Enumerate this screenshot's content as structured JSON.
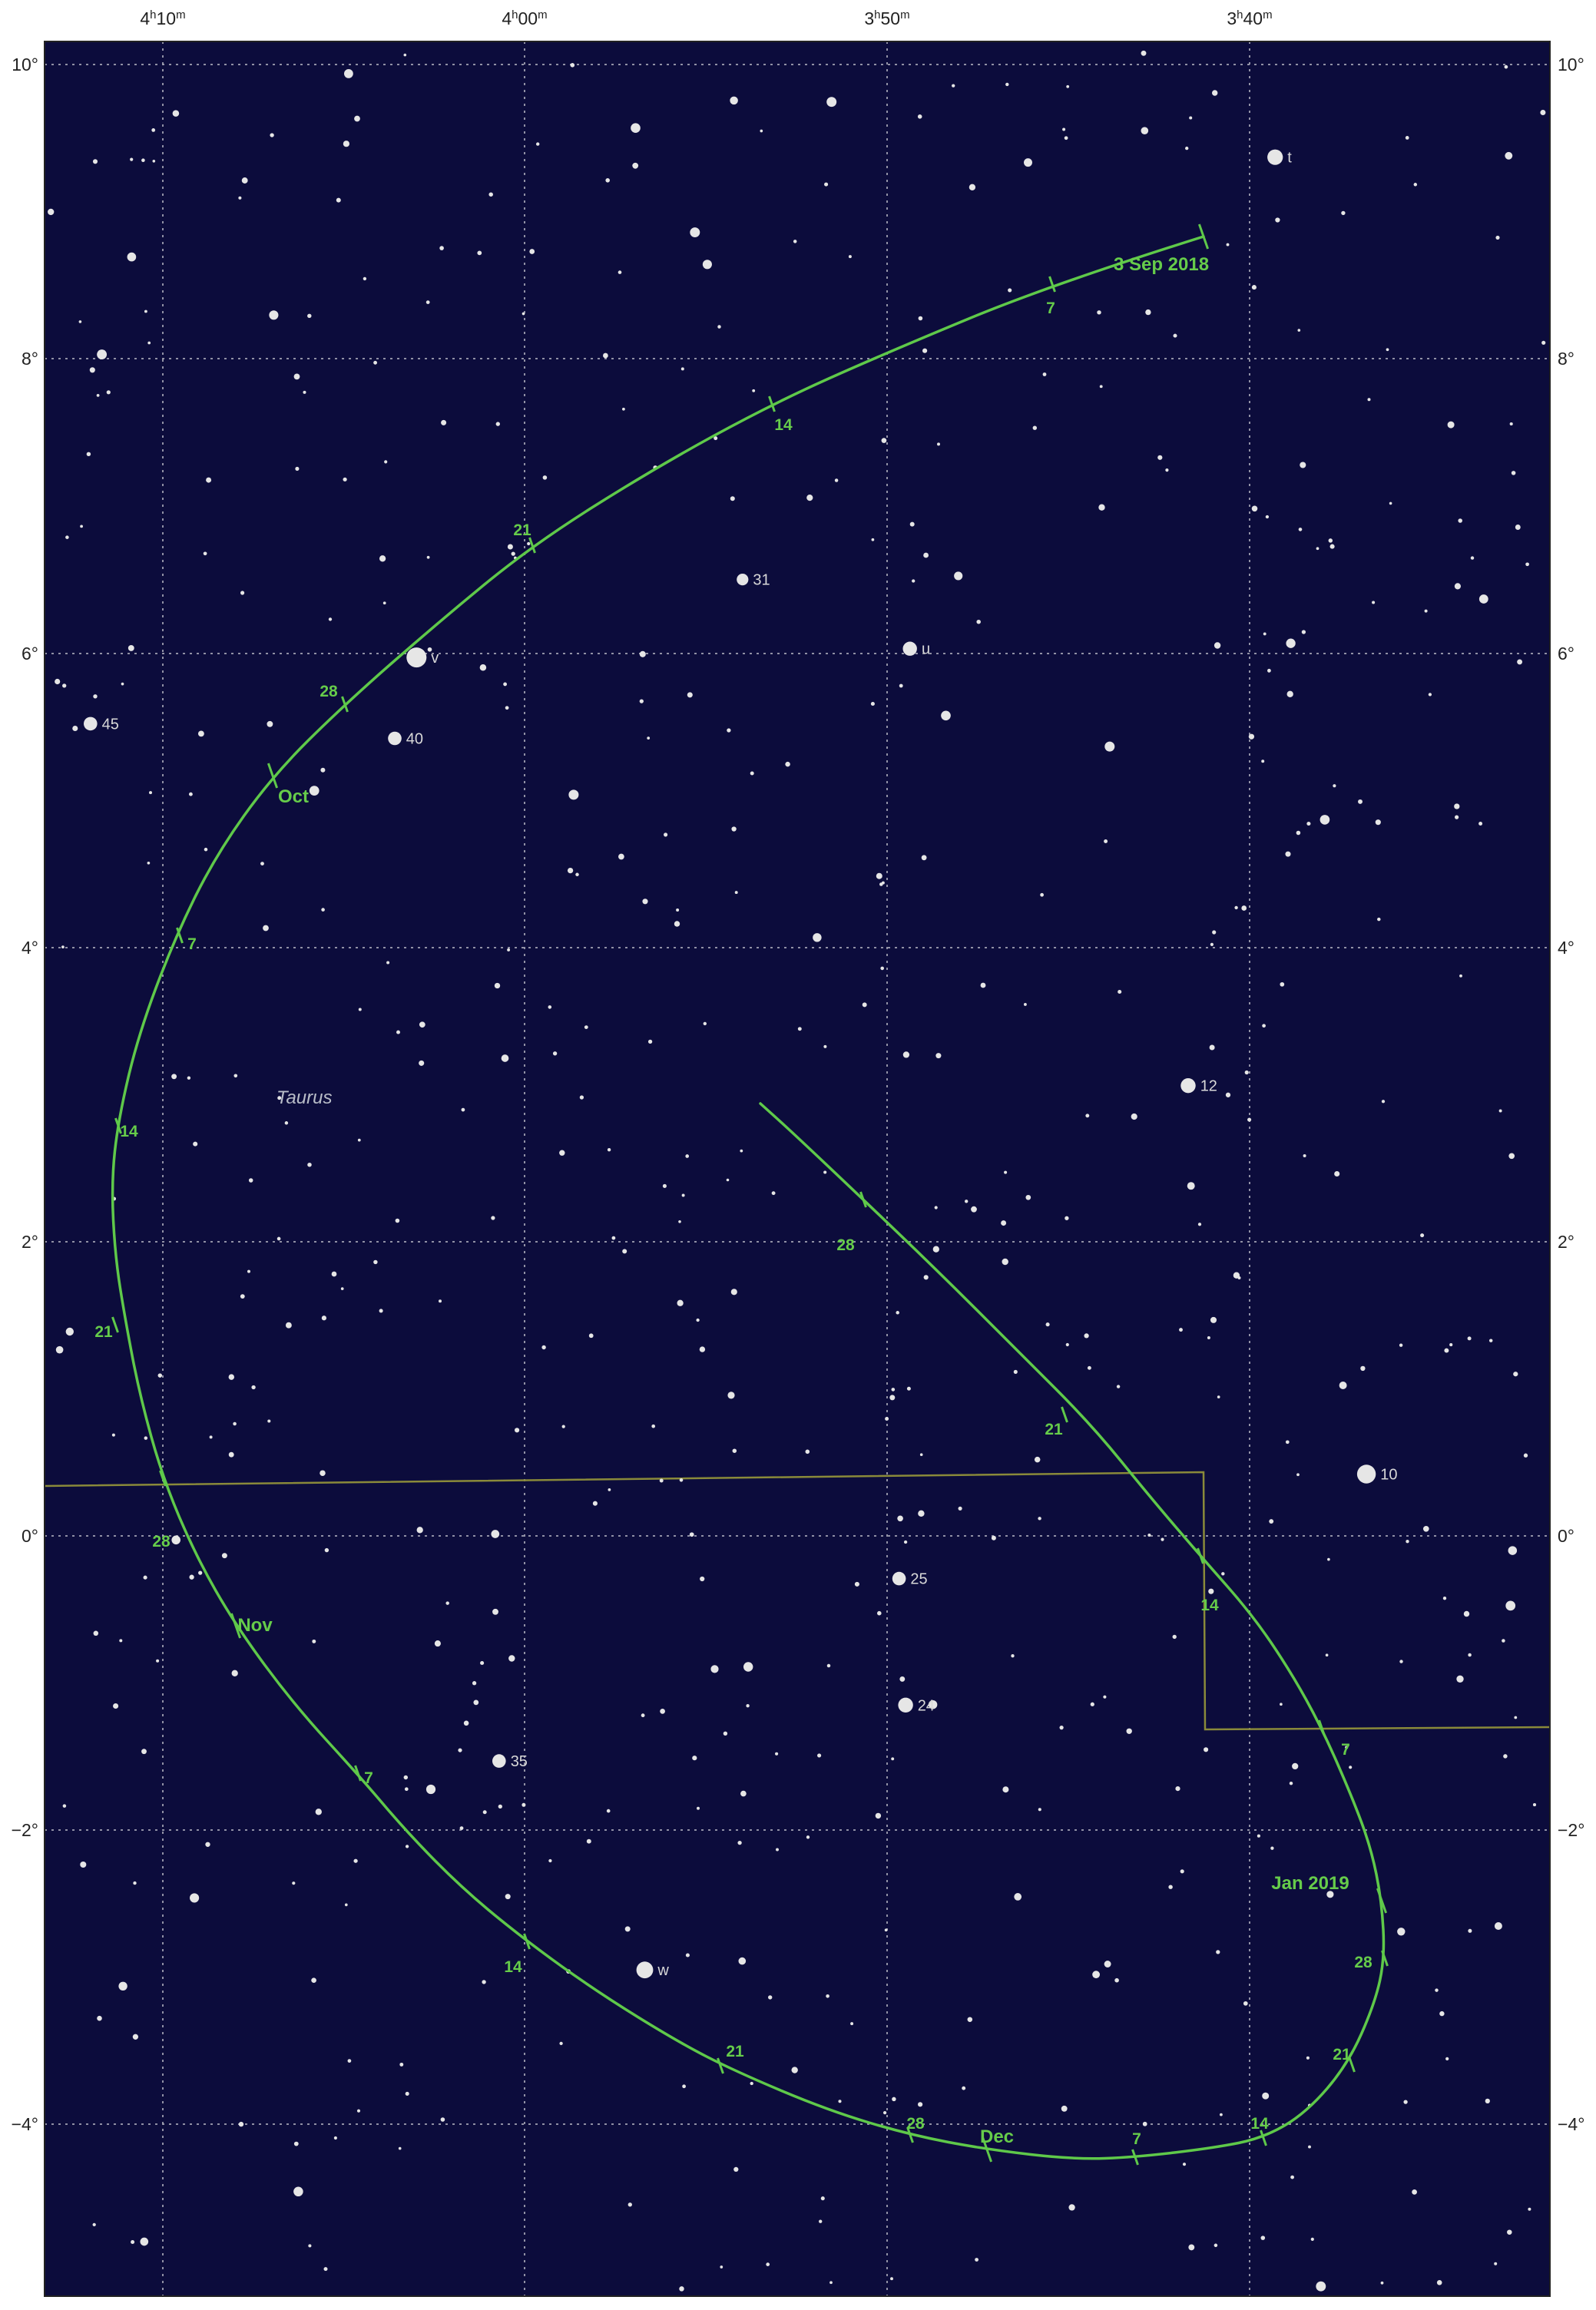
{
  "chart": {
    "ra_labels": [
      {
        "h": "4",
        "m": "10"
      },
      {
        "h": "4",
        "m": "00"
      },
      {
        "h": "3",
        "m": "50"
      },
      {
        "h": "3",
        "m": "40"
      }
    ],
    "dec_labels": [
      "10°",
      "8°",
      "6°",
      "4°",
      "2°",
      "0°",
      "−2°",
      "−4°"
    ],
    "constellation": "Taurus",
    "colors": {
      "sky": "#0c0c3c",
      "grid": "#a9a9b8",
      "path": "#5fc94a",
      "boundary": "#8a8a3a",
      "star": "#e6e6e6"
    }
  },
  "stars": [
    {
      "ra": 3.655,
      "dec": 9.37,
      "mag": 4.6,
      "label": "t"
    },
    {
      "ra": 4.2,
      "dec": 5.52,
      "mag": 4.9,
      "label": "45"
    },
    {
      "ra": 4.05,
      "dec": 5.97,
      "mag": 3.9,
      "label": "v"
    },
    {
      "ra": 4.06,
      "dec": 5.42,
      "mag": 4.9,
      "label": "40"
    },
    {
      "ra": 3.9,
      "dec": 6.5,
      "mag": 5.2,
      "label": "31"
    },
    {
      "ra": 3.823,
      "dec": 6.03,
      "mag": 4.8,
      "label": "u"
    },
    {
      "ra": 3.695,
      "dec": 3.06,
      "mag": 4.7,
      "label": "12"
    },
    {
      "ra": 3.613,
      "dec": 0.42,
      "mag": 4.1,
      "label": "10"
    },
    {
      "ra": 3.828,
      "dec": -0.29,
      "mag": 4.9,
      "label": "25"
    },
    {
      "ra": 3.825,
      "dec": -1.15,
      "mag": 4.7,
      "label": "24"
    },
    {
      "ra": 4.012,
      "dec": -1.53,
      "mag": 4.9,
      "label": "35"
    },
    {
      "ra": 3.945,
      "dec": -2.95,
      "mag": 4.4,
      "label": "w"
    }
  ],
  "path": {
    "ticks": [
      {
        "label": "3 Sep 2018",
        "major": true
      },
      {
        "label": "7",
        "major": false
      },
      {
        "label": "14",
        "major": false
      },
      {
        "label": "21",
        "major": false
      },
      {
        "label": "28",
        "major": false
      },
      {
        "label": "Oct",
        "major": true
      },
      {
        "label": "7",
        "major": false
      },
      {
        "label": "14",
        "major": false
      },
      {
        "label": "21",
        "major": false
      },
      {
        "label": "28",
        "major": false
      },
      {
        "label": "Nov",
        "major": true
      },
      {
        "label": "7",
        "major": false
      },
      {
        "label": "14",
        "major": false
      },
      {
        "label": "21",
        "major": false
      },
      {
        "label": "28",
        "major": false
      },
      {
        "label": "Dec",
        "major": true
      },
      {
        "label": "7",
        "major": false
      },
      {
        "label": "14",
        "major": false
      },
      {
        "label": "21",
        "major": false
      },
      {
        "label": "28",
        "major": false
      },
      {
        "label": "Jan 2019",
        "major": true
      },
      {
        "label": "7",
        "major": false
      },
      {
        "label": "14",
        "major": false
      },
      {
        "label": "21",
        "major": false
      },
      {
        "label": "28",
        "major": false
      }
    ]
  }
}
